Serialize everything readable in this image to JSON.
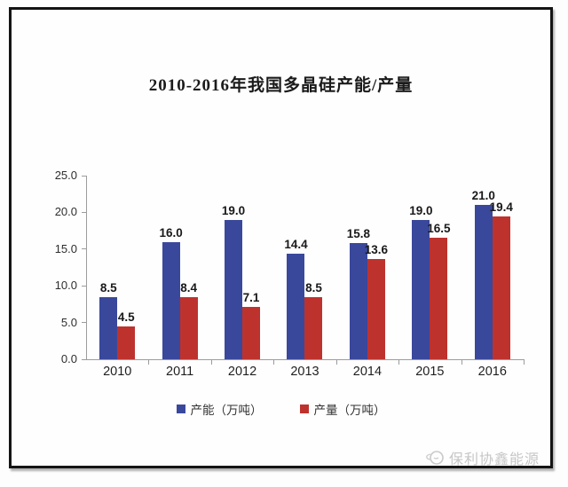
{
  "chart_data": {
    "type": "bar",
    "title": "2010-2016年我国多晶硅产能/产量",
    "categories": [
      "2010",
      "2011",
      "2012",
      "2013",
      "2014",
      "2015",
      "2016"
    ],
    "series": [
      {
        "name": "产能（万吨）",
        "color": "#3A489B",
        "values": [
          8.5,
          16.0,
          19.0,
          14.4,
          15.8,
          19.0,
          21.0
        ]
      },
      {
        "name": "产量（万吨）",
        "color": "#BE322E",
        "values": [
          4.5,
          8.4,
          7.1,
          8.5,
          13.6,
          16.5,
          19.4
        ]
      }
    ],
    "ylim": [
      0,
      25
    ],
    "ytick_step": 5,
    "ytick_labels": [
      "0.0",
      "5.0",
      "10.0",
      "15.0",
      "20.0",
      "25.0"
    ],
    "grid": false,
    "legend_position": "bottom",
    "axis_color": "#9c9c9c",
    "value_label_decimals": 1
  },
  "watermark": {
    "text": "保利协鑫能源",
    "icon": "gcl-logo-icon",
    "color": "#c6c6c6"
  }
}
